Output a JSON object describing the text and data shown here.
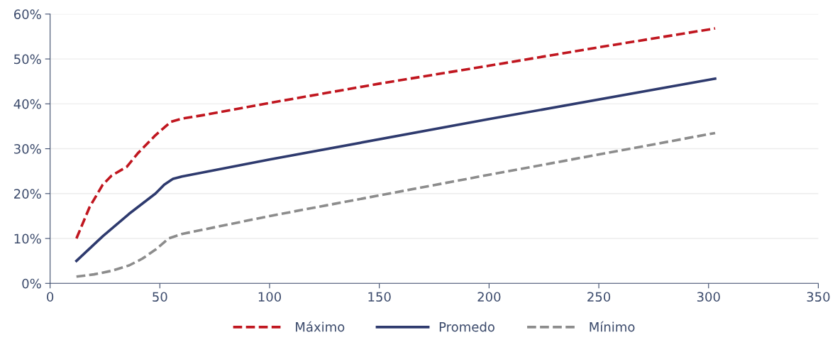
{
  "chart_data": {
    "type": "line",
    "xlim": [
      0,
      350
    ],
    "xticks": [
      0,
      50,
      100,
      150,
      200,
      250,
      300,
      350
    ],
    "ylim": [
      0,
      60
    ],
    "yticks": [
      {
        "value": 0,
        "label": "0%"
      },
      {
        "value": 10,
        "label": "10%"
      },
      {
        "value": 20,
        "label": "20%"
      },
      {
        "value": 30,
        "label": "30%"
      },
      {
        "value": 40,
        "label": "40%"
      },
      {
        "value": 50,
        "label": "50%"
      },
      {
        "value": 60,
        "label": "60%"
      }
    ],
    "grid": "y",
    "legend": "bottom",
    "marker": "none",
    "series": [
      {
        "name": "Máximo",
        "color": "#c0161f",
        "line_style": "dashed",
        "x": [
          12,
          18,
          24,
          28,
          35,
          40,
          48,
          55,
          60,
          70,
          100,
          150,
          200,
          250,
          303
        ],
        "values": [
          10,
          17,
          22,
          24,
          26,
          29,
          33,
          36,
          36.7,
          37.5,
          40.2,
          44.5,
          48.5,
          52.6,
          56.8
        ]
      },
      {
        "name": "Promedo",
        "color": "#2e3a6e",
        "line_style": "solid",
        "x": [
          12,
          24,
          36,
          48,
          52,
          56,
          60,
          100,
          200,
          303
        ],
        "values": [
          5,
          10.5,
          15.5,
          20,
          22,
          23.3,
          23.8,
          27.6,
          36.6,
          45.6
        ]
      },
      {
        "name": "Mínimo",
        "color": "#8c8c8c",
        "line_style": "dashed",
        "x": [
          12,
          20,
          28,
          36,
          42,
          48,
          54,
          60,
          100,
          200,
          303
        ],
        "values": [
          1.5,
          2,
          2.8,
          4,
          5.5,
          7.5,
          10,
          11,
          15,
          24.2,
          33.5
        ]
      }
    ]
  }
}
